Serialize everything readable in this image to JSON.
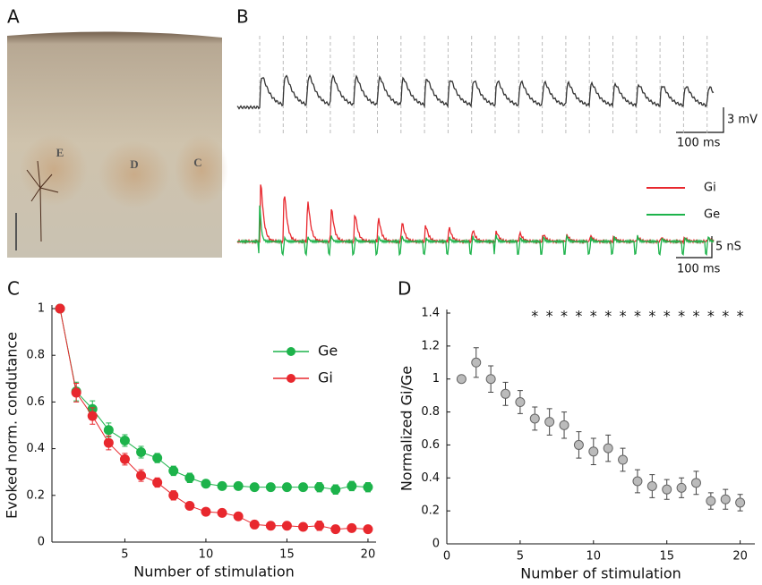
{
  "panel_labels": [
    "A",
    "B",
    "C",
    "D"
  ],
  "panel_a": {
    "site_labels": [
      "E",
      "D",
      "C"
    ]
  },
  "panel_b": {
    "voltage_scale": [
      "3 mV",
      "100 ms"
    ],
    "conductance_scale": [
      "5 nS",
      "100 ms"
    ],
    "legend": [
      "Gi",
      "Ge"
    ]
  },
  "chart_data": [
    {
      "type": "line",
      "xlabel": "Number of stimulation",
      "ylabel": "Evoked norm. condutance",
      "x": [
        1,
        2,
        3,
        4,
        5,
        6,
        7,
        8,
        9,
        10,
        11,
        12,
        13,
        14,
        15,
        16,
        17,
        18,
        19,
        20
      ],
      "xlim": [
        0.5,
        20.5
      ],
      "xticks": [
        5,
        10,
        15,
        20
      ],
      "ylim": [
        0,
        1
      ],
      "yticks": [
        0,
        0.2,
        0.4,
        0.6,
        0.8,
        1
      ],
      "legend": "upper right",
      "series": [
        {
          "name": "Ge",
          "color": "#1db34b",
          "values": [
            1,
            0.645,
            0.57,
            0.48,
            0.435,
            0.385,
            0.36,
            0.305,
            0.275,
            0.25,
            0.24,
            0.24,
            0.235,
            0.235,
            0.235,
            0.235,
            0.235,
            0.225,
            0.24,
            0.235
          ],
          "errors": [
            0,
            0.04,
            0.035,
            0.03,
            0.025,
            0.025,
            0.02,
            0.02,
            0.02,
            0.015,
            0.015,
            0.015,
            0.015,
            0.015,
            0.015,
            0.015,
            0.02,
            0.02,
            0.02,
            0.02
          ]
        },
        {
          "name": "Gi",
          "color": "#e8282e",
          "values": [
            1,
            0.64,
            0.54,
            0.425,
            0.355,
            0.285,
            0.255,
            0.2,
            0.155,
            0.13,
            0.125,
            0.11,
            0.075,
            0.07,
            0.07,
            0.065,
            0.07,
            0.055,
            0.06,
            0.055
          ],
          "errors": [
            0,
            0.04,
            0.035,
            0.03,
            0.025,
            0.025,
            0.02,
            0.02,
            0.015,
            0.015,
            0.015,
            0.015,
            0.015,
            0.015,
            0.015,
            0.015,
            0.02,
            0.015,
            0.015,
            0.015
          ]
        }
      ]
    },
    {
      "type": "scatter",
      "xlabel": "Number of stimulation",
      "ylabel": "Normalized Gi/Ge",
      "x": [
        1,
        2,
        3,
        4,
        5,
        6,
        7,
        8,
        9,
        10,
        11,
        12,
        13,
        14,
        15,
        16,
        17,
        18,
        19,
        20
      ],
      "values": [
        1,
        1.1,
        1.0,
        0.91,
        0.86,
        0.76,
        0.74,
        0.72,
        0.6,
        0.56,
        0.58,
        0.51,
        0.38,
        0.35,
        0.33,
        0.34,
        0.37,
        0.26,
        0.27,
        0.25
      ],
      "errors": [
        0,
        0.09,
        0.08,
        0.07,
        0.07,
        0.07,
        0.08,
        0.08,
        0.08,
        0.08,
        0.08,
        0.07,
        0.07,
        0.07,
        0.06,
        0.06,
        0.07,
        0.05,
        0.06,
        0.05
      ],
      "color": "#bbbbbb",
      "xlim": [
        0,
        21
      ],
      "xticks": [
        0,
        5,
        10,
        15,
        20
      ],
      "ylim": [
        0,
        1.4
      ],
      "yticks": [
        0,
        0.2,
        0.4,
        0.6,
        0.8,
        1,
        1.2,
        1.4
      ],
      "significance": {
        "label": "*",
        "x": [
          6,
          7,
          8,
          9,
          10,
          11,
          12,
          13,
          14,
          15,
          16,
          17,
          18,
          19,
          20
        ],
        "y": 1.4
      }
    }
  ]
}
